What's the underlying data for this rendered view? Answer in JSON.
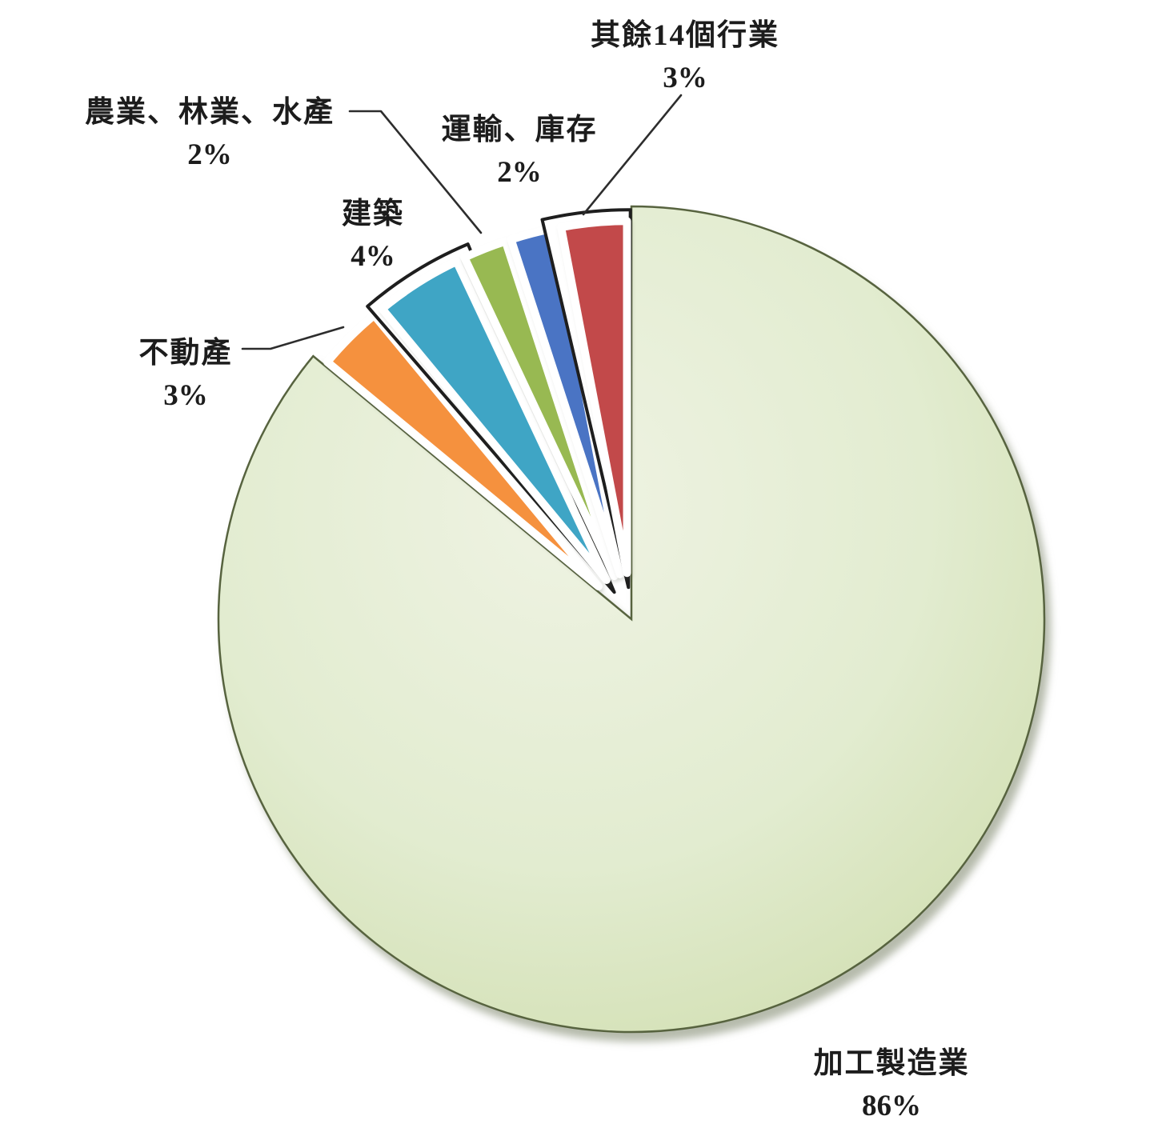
{
  "chart_data": {
    "type": "pie",
    "title": "",
    "unit": "%",
    "direction": "clockwise",
    "start_angle_deg": 0,
    "legend_position": "none",
    "total": 100,
    "slices": [
      {
        "label": "加工製造業",
        "pct": "86%",
        "value": 86,
        "color": "#dfe9c8",
        "exploded": false,
        "outlined": false
      },
      {
        "label": "不動產",
        "pct": "3%",
        "value": 3,
        "color": "#f5913e",
        "exploded": true,
        "outlined": false
      },
      {
        "label": "建築",
        "pct": "4%",
        "value": 4,
        "color": "#3fa5c5",
        "exploded": true,
        "outlined": true
      },
      {
        "label": "農業、林業、水產",
        "pct": "2%",
        "value": 2,
        "color": "#98b952",
        "exploded": true,
        "outlined": false
      },
      {
        "label": "運輸、庫存",
        "pct": "2%",
        "value": 2,
        "color": "#4a74c4",
        "exploded": true,
        "outlined": false
      },
      {
        "label": "其餘14個行業",
        "pct": "3%",
        "value": 3,
        "color": "#c2494a",
        "exploded": true,
        "outlined": true
      }
    ],
    "palette": {
      "background": "#ffffff",
      "big_slice_gradient": [
        "#eff3e3",
        "#e2ecd0",
        "#cedcab"
      ],
      "big_slice_border": "#57633f",
      "selected_outline": "#1e1e1e",
      "gap_white": "#ffffff",
      "leader_line": "#2d2d2d",
      "text": "#1c1c1c"
    }
  }
}
